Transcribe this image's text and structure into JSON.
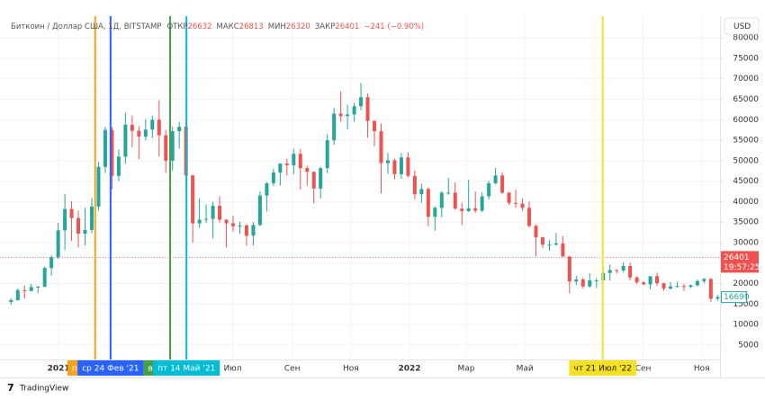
{
  "header": {
    "symbol": "Биткоин / Доллар США, 1Д, BITSTAMP",
    "open_label": "ОТКР",
    "open": 26632,
    "high_label": "МАКС",
    "high": 26813,
    "low_label": "МИН",
    "low": 26320,
    "close_label": "ЗАКР",
    "close": 26401,
    "change": "−241 (−0.90%)"
  },
  "currency": "USD",
  "logo": "TradingView",
  "chart_data": {
    "type": "candlestick",
    "up_color": "#26a69a",
    "down_color": "#ef5350",
    "grid": true,
    "ylim": [
      1470,
      85300
    ],
    "yticks": [
      5000,
      10000,
      15000,
      20000,
      25000,
      30000,
      35000,
      40000,
      45000,
      50000,
      55000,
      60000,
      65000,
      70000,
      75000,
      80000
    ],
    "xlim": [
      "2020-11-01",
      "2022-11-20"
    ],
    "xticks": [
      {
        "value": "2021-01-01",
        "label": "2021"
      },
      {
        "value": "2021-07-01",
        "label": "Июл"
      },
      {
        "value": "2021-09-01",
        "label": "Сен"
      },
      {
        "value": "2021-11-01",
        "label": "Ноя"
      },
      {
        "value": "2022-01-01",
        "label": "2022"
      },
      {
        "value": "2022-03-01",
        "label": "Мар"
      },
      {
        "value": "2022-05-01",
        "label": "Май"
      },
      {
        "value": "2022-09-01",
        "label": "Сен"
      },
      {
        "value": "2022-11-01",
        "label": "Ноя"
      }
    ],
    "price_line": {
      "value": 26401,
      "countdown": "19:57:25",
      "color": "#ef5350"
    },
    "last_visible": {
      "value": 16690,
      "color": "#26a69a"
    },
    "markers": [
      {
        "x": "2021-02-08",
        "label": "пн",
        "color": "#f7a21b"
      },
      {
        "x": "2021-02-24",
        "label": "ср 24 Фев '21",
        "color": "#2962ff"
      },
      {
        "x": "2021-04-27",
        "label": "вт",
        "color": "#43a047"
      },
      {
        "x": "2021-05-14",
        "label": "пт 14 Май '21",
        "color": "#00bcd4"
      },
      {
        "x": "2022-07-21",
        "label": "чт 21 Июл '22",
        "color": "#f5e11f"
      }
    ],
    "candles": [
      {
        "x": "2020-11-09",
        "open": 15480,
        "high": 16480,
        "low": 14800,
        "close": 15960
      },
      {
        "x": "2020-11-16",
        "open": 15960,
        "high": 18800,
        "low": 15780,
        "close": 18400
      },
      {
        "x": "2020-11-23",
        "open": 18400,
        "high": 19600,
        "low": 16300,
        "close": 18200
      },
      {
        "x": "2020-11-30",
        "open": 18200,
        "high": 19900,
        "low": 18100,
        "close": 19150
      },
      {
        "x": "2020-12-07",
        "open": 19150,
        "high": 19400,
        "low": 17600,
        "close": 19260
      },
      {
        "x": "2020-12-14",
        "open": 19260,
        "high": 24200,
        "low": 19000,
        "close": 23800
      },
      {
        "x": "2020-12-21",
        "open": 23800,
        "high": 26900,
        "low": 21900,
        "close": 26450
      },
      {
        "x": "2020-12-28",
        "open": 26450,
        "high": 34800,
        "low": 26000,
        "close": 33000
      },
      {
        "x": "2021-01-04",
        "open": 33000,
        "high": 41900,
        "low": 28200,
        "close": 38200
      },
      {
        "x": "2021-01-11",
        "open": 38200,
        "high": 40100,
        "low": 30400,
        "close": 36000
      },
      {
        "x": "2021-01-18",
        "open": 36000,
        "high": 37800,
        "low": 28800,
        "close": 32200
      },
      {
        "x": "2021-01-25",
        "open": 32200,
        "high": 38500,
        "low": 29300,
        "close": 33100
      },
      {
        "x": "2021-02-01",
        "open": 33100,
        "high": 40900,
        "low": 32300,
        "close": 38800
      },
      {
        "x": "2021-02-08",
        "open": 38800,
        "high": 49700,
        "low": 37800,
        "close": 48500
      },
      {
        "x": "2021-02-15",
        "open": 48500,
        "high": 58300,
        "low": 47000,
        "close": 57500
      },
      {
        "x": "2021-02-22",
        "open": 57500,
        "high": 58300,
        "low": 43000,
        "close": 46300
      },
      {
        "x": "2021-03-01",
        "open": 46300,
        "high": 52700,
        "low": 45000,
        "close": 51000
      },
      {
        "x": "2021-03-08",
        "open": 51000,
        "high": 61700,
        "low": 49300,
        "close": 58800
      },
      {
        "x": "2021-03-15",
        "open": 58800,
        "high": 61000,
        "low": 53300,
        "close": 57300
      },
      {
        "x": "2021-03-22",
        "open": 57300,
        "high": 58400,
        "low": 50400,
        "close": 55900
      },
      {
        "x": "2021-03-29",
        "open": 55900,
        "high": 60100,
        "low": 55000,
        "close": 57600
      },
      {
        "x": "2021-04-05",
        "open": 57600,
        "high": 61000,
        "low": 55500,
        "close": 60000
      },
      {
        "x": "2021-04-12",
        "open": 60000,
        "high": 64800,
        "low": 51000,
        "close": 56200
      },
      {
        "x": "2021-04-19",
        "open": 56200,
        "high": 57500,
        "low": 47000,
        "close": 50000
      },
      {
        "x": "2021-04-26",
        "open": 50000,
        "high": 58400,
        "low": 47600,
        "close": 57200
      },
      {
        "x": "2021-05-03",
        "open": 57200,
        "high": 59500,
        "low": 53000,
        "close": 58300
      },
      {
        "x": "2021-05-10",
        "open": 58300,
        "high": 59600,
        "low": 43000,
        "close": 46400
      },
      {
        "x": "2021-05-17",
        "open": 46400,
        "high": 46600,
        "low": 30000,
        "close": 34700
      },
      {
        "x": "2021-05-24",
        "open": 34700,
        "high": 40800,
        "low": 33600,
        "close": 35600
      },
      {
        "x": "2021-05-31",
        "open": 35600,
        "high": 39300,
        "low": 34800,
        "close": 35800
      },
      {
        "x": "2021-06-07",
        "open": 35800,
        "high": 40000,
        "low": 31000,
        "close": 39000
      },
      {
        "x": "2021-06-14",
        "open": 39000,
        "high": 41300,
        "low": 34900,
        "close": 35600
      },
      {
        "x": "2021-06-21",
        "open": 35600,
        "high": 35700,
        "low": 28800,
        "close": 34700
      },
      {
        "x": "2021-06-28",
        "open": 34700,
        "high": 36600,
        "low": 32700,
        "close": 34000
      },
      {
        "x": "2021-07-05",
        "open": 34000,
        "high": 35100,
        "low": 32100,
        "close": 34200
      },
      {
        "x": "2021-07-12",
        "open": 34200,
        "high": 34600,
        "low": 29300,
        "close": 31700
      },
      {
        "x": "2021-07-19",
        "open": 31700,
        "high": 35000,
        "low": 29300,
        "close": 34300
      },
      {
        "x": "2021-07-26",
        "open": 34300,
        "high": 42500,
        "low": 34000,
        "close": 41500
      },
      {
        "x": "2021-08-02",
        "open": 41500,
        "high": 44800,
        "low": 37600,
        "close": 44500
      },
      {
        "x": "2021-08-09",
        "open": 44500,
        "high": 48100,
        "low": 43800,
        "close": 47100
      },
      {
        "x": "2021-08-16",
        "open": 47100,
        "high": 49400,
        "low": 43900,
        "close": 49300
      },
      {
        "x": "2021-08-23",
        "open": 49300,
        "high": 50500,
        "low": 46400,
        "close": 48900
      },
      {
        "x": "2021-08-30",
        "open": 48900,
        "high": 52900,
        "low": 46700,
        "close": 51700
      },
      {
        "x": "2021-09-06",
        "open": 51700,
        "high": 52900,
        "low": 43000,
        "close": 48200
      },
      {
        "x": "2021-09-13",
        "open": 48200,
        "high": 48800,
        "low": 43900,
        "close": 47300
      },
      {
        "x": "2021-09-20",
        "open": 47300,
        "high": 47300,
        "low": 39600,
        "close": 43200
      },
      {
        "x": "2021-09-27",
        "open": 43200,
        "high": 48500,
        "low": 40800,
        "close": 48200
      },
      {
        "x": "2021-10-04",
        "open": 48200,
        "high": 56500,
        "low": 47000,
        "close": 55000
      },
      {
        "x": "2021-10-11",
        "open": 55000,
        "high": 62900,
        "low": 53900,
        "close": 61500
      },
      {
        "x": "2021-10-18",
        "open": 61500,
        "high": 67000,
        "low": 59500,
        "close": 60900
      },
      {
        "x": "2021-10-25",
        "open": 60900,
        "high": 63700,
        "low": 57600,
        "close": 61300
      },
      {
        "x": "2021-11-01",
        "open": 61300,
        "high": 64200,
        "low": 59500,
        "close": 63300
      },
      {
        "x": "2021-11-08",
        "open": 63300,
        "high": 69000,
        "low": 62300,
        "close": 65500
      },
      {
        "x": "2021-11-15",
        "open": 65500,
        "high": 66400,
        "low": 55600,
        "close": 59700
      },
      {
        "x": "2021-11-22",
        "open": 59700,
        "high": 59900,
        "low": 53500,
        "close": 57200
      },
      {
        "x": "2021-11-29",
        "open": 57200,
        "high": 59100,
        "low": 42000,
        "close": 49400
      },
      {
        "x": "2021-12-06",
        "open": 49400,
        "high": 51900,
        "low": 46800,
        "close": 50100
      },
      {
        "x": "2021-12-13",
        "open": 50100,
        "high": 50500,
        "low": 45500,
        "close": 46700
      },
      {
        "x": "2021-12-20",
        "open": 46700,
        "high": 51900,
        "low": 45600,
        "close": 50800
      },
      {
        "x": "2021-12-27",
        "open": 50800,
        "high": 52000,
        "low": 45900,
        "close": 46300
      },
      {
        "x": "2022-01-03",
        "open": 46300,
        "high": 47600,
        "low": 40600,
        "close": 41800
      },
      {
        "x": "2022-01-10",
        "open": 41800,
        "high": 44400,
        "low": 39700,
        "close": 43100
      },
      {
        "x": "2022-01-17",
        "open": 43100,
        "high": 43500,
        "low": 34000,
        "close": 36300
      },
      {
        "x": "2022-01-24",
        "open": 36300,
        "high": 38900,
        "low": 32900,
        "close": 38500
      },
      {
        "x": "2022-01-31",
        "open": 38500,
        "high": 42600,
        "low": 36200,
        "close": 42200
      },
      {
        "x": "2022-02-07",
        "open": 42200,
        "high": 45800,
        "low": 41700,
        "close": 42200
      },
      {
        "x": "2022-02-14",
        "open": 42200,
        "high": 44700,
        "low": 38000,
        "close": 38300
      },
      {
        "x": "2022-02-21",
        "open": 38300,
        "high": 39700,
        "low": 34300,
        "close": 37700
      },
      {
        "x": "2022-02-28",
        "open": 37700,
        "high": 45400,
        "low": 37500,
        "close": 38400
      },
      {
        "x": "2022-03-07",
        "open": 38400,
        "high": 42500,
        "low": 37200,
        "close": 37800
      },
      {
        "x": "2022-03-14",
        "open": 37800,
        "high": 42300,
        "low": 37500,
        "close": 41300
      },
      {
        "x": "2022-03-21",
        "open": 41300,
        "high": 45100,
        "low": 40500,
        "close": 44500
      },
      {
        "x": "2022-03-28",
        "open": 44500,
        "high": 48200,
        "low": 44200,
        "close": 46400
      },
      {
        "x": "2022-04-04",
        "open": 46400,
        "high": 47200,
        "low": 41900,
        "close": 42200
      },
      {
        "x": "2022-04-11",
        "open": 42200,
        "high": 42400,
        "low": 39200,
        "close": 39700
      },
      {
        "x": "2022-04-18",
        "open": 39700,
        "high": 42900,
        "low": 38500,
        "close": 39500
      },
      {
        "x": "2022-04-25",
        "open": 39500,
        "high": 40800,
        "low": 37700,
        "close": 38500
      },
      {
        "x": "2022-05-02",
        "open": 38500,
        "high": 40000,
        "low": 33700,
        "close": 34100
      },
      {
        "x": "2022-05-09",
        "open": 34100,
        "high": 34400,
        "low": 26700,
        "close": 31300
      },
      {
        "x": "2022-05-16",
        "open": 31300,
        "high": 31400,
        "low": 28700,
        "close": 29500
      },
      {
        "x": "2022-05-23",
        "open": 29500,
        "high": 30600,
        "low": 28000,
        "close": 29500
      },
      {
        "x": "2022-05-30",
        "open": 29500,
        "high": 32400,
        "low": 29300,
        "close": 29800
      },
      {
        "x": "2022-06-06",
        "open": 29800,
        "high": 31600,
        "low": 26600,
        "close": 26600
      },
      {
        "x": "2022-06-13",
        "open": 26600,
        "high": 26800,
        "low": 17600,
        "close": 20500
      },
      {
        "x": "2022-06-20",
        "open": 20500,
        "high": 21900,
        "low": 19600,
        "close": 21000
      },
      {
        "x": "2022-06-27",
        "open": 21000,
        "high": 21500,
        "low": 18800,
        "close": 19300
      },
      {
        "x": "2022-07-04",
        "open": 19300,
        "high": 22500,
        "low": 19000,
        "close": 20800
      },
      {
        "x": "2022-07-11",
        "open": 20800,
        "high": 21300,
        "low": 18900,
        "close": 20800
      },
      {
        "x": "2022-07-18",
        "open": 20800,
        "high": 24200,
        "low": 20800,
        "close": 22600
      },
      {
        "x": "2022-07-25",
        "open": 22600,
        "high": 24600,
        "low": 20700,
        "close": 23300
      },
      {
        "x": "2022-08-01",
        "open": 23300,
        "high": 23500,
        "low": 22400,
        "close": 23200
      },
      {
        "x": "2022-08-08",
        "open": 23200,
        "high": 25200,
        "low": 22700,
        "close": 24300
      },
      {
        "x": "2022-08-15",
        "open": 24300,
        "high": 25100,
        "low": 20800,
        "close": 21500
      },
      {
        "x": "2022-08-22",
        "open": 21500,
        "high": 21800,
        "low": 19900,
        "close": 20300
      },
      {
        "x": "2022-08-29",
        "open": 20300,
        "high": 20600,
        "low": 19600,
        "close": 19800
      },
      {
        "x": "2022-09-05",
        "open": 19800,
        "high": 21800,
        "low": 18600,
        "close": 21800
      },
      {
        "x": "2022-09-12",
        "open": 21800,
        "high": 22700,
        "low": 19400,
        "close": 20100
      },
      {
        "x": "2022-09-19",
        "open": 20100,
        "high": 20200,
        "low": 18200,
        "close": 18800
      },
      {
        "x": "2022-09-26",
        "open": 18800,
        "high": 20300,
        "low": 18500,
        "close": 19300
      },
      {
        "x": "2022-10-03",
        "open": 19300,
        "high": 20400,
        "low": 19000,
        "close": 19400
      },
      {
        "x": "2022-10-10",
        "open": 19400,
        "high": 19900,
        "low": 18200,
        "close": 19200
      },
      {
        "x": "2022-10-17",
        "open": 19200,
        "high": 19700,
        "low": 18900,
        "close": 19600
      },
      {
        "x": "2022-10-24",
        "open": 19600,
        "high": 21000,
        "low": 19300,
        "close": 20600
      },
      {
        "x": "2022-10-31",
        "open": 20600,
        "high": 21400,
        "low": 20100,
        "close": 21100
      },
      {
        "x": "2022-11-07",
        "open": 21100,
        "high": 21400,
        "low": 15600,
        "close": 16300
      },
      {
        "x": "2022-11-14",
        "open": 16300,
        "high": 17200,
        "low": 15800,
        "close": 16690
      }
    ]
  }
}
